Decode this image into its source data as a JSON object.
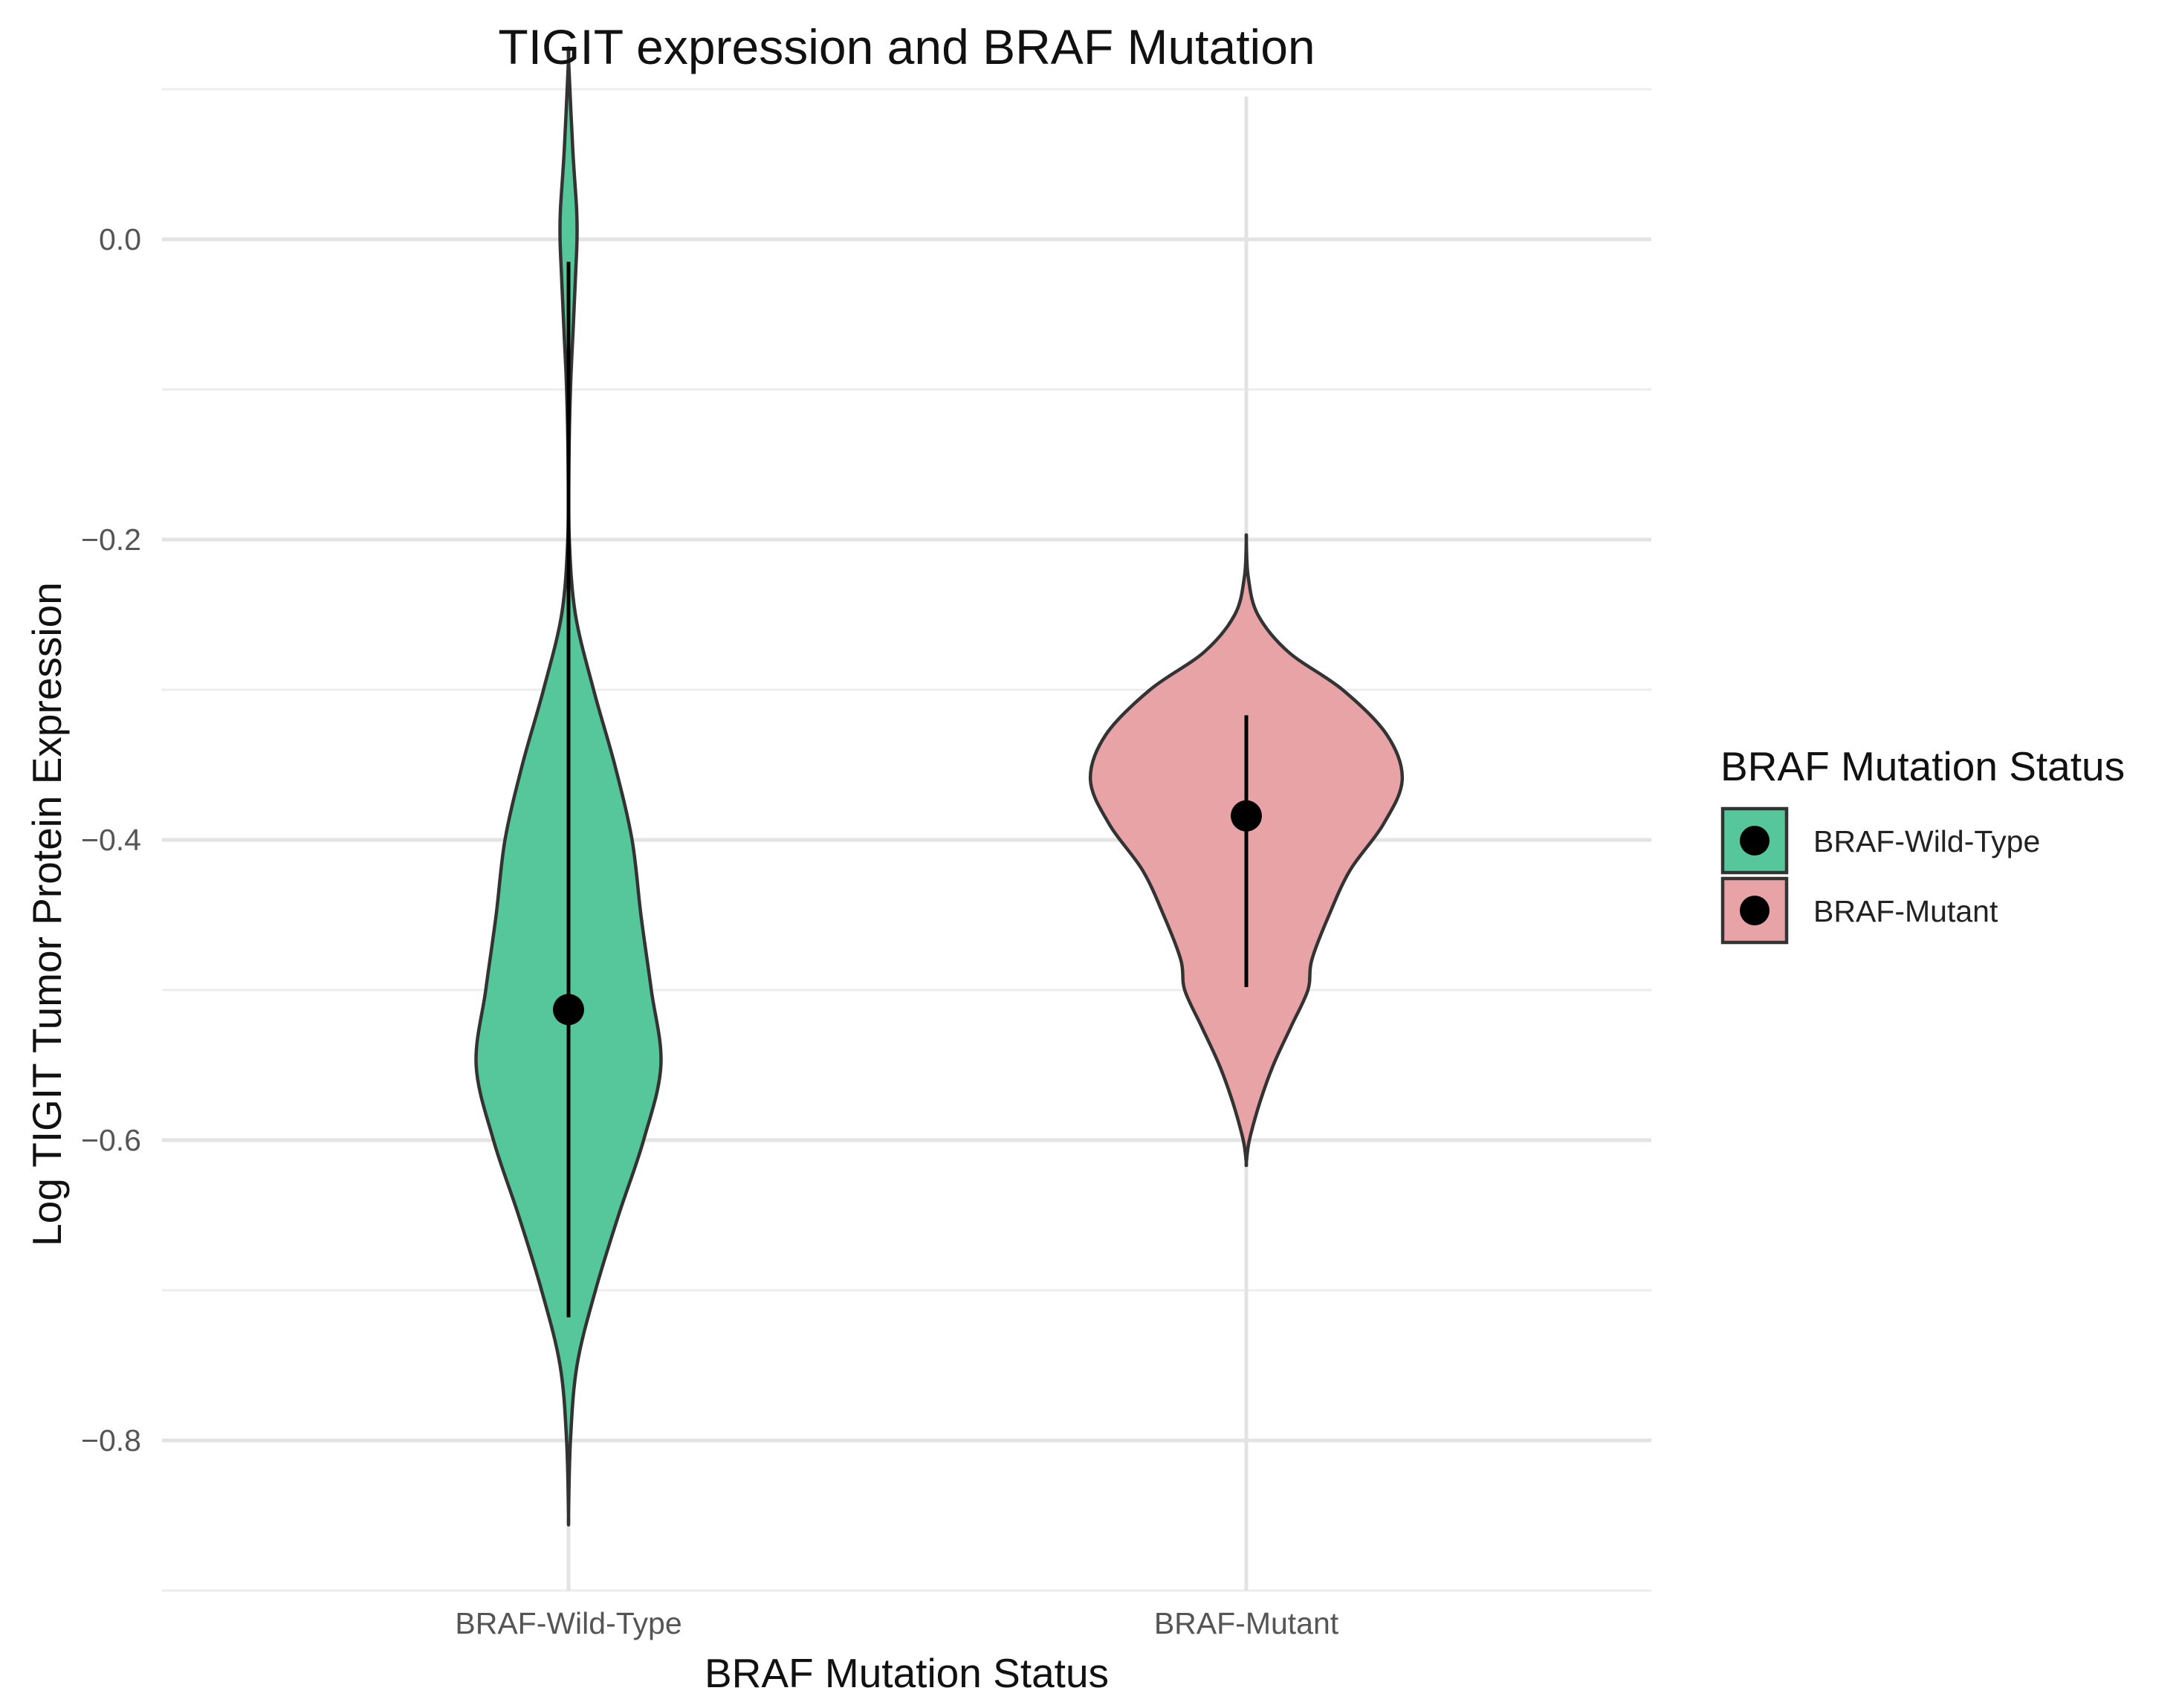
{
  "chart_data": {
    "type": "violin",
    "title": "TIGIT expression and BRAF Mutation",
    "xlabel": "BRAF Mutation Status",
    "ylabel": "Log TIGIT Tumor Protein Expression",
    "ylim": [
      -0.9,
      0.1
    ],
    "yticks": [
      0.0,
      -0.2,
      -0.4,
      -0.6,
      -0.8
    ],
    "ytick_labels": [
      "0.0",
      "−0.2",
      "−0.4",
      "−0.6",
      "−0.8"
    ],
    "categories": [
      "BRAF-Wild-Type",
      "BRAF-Mutant"
    ],
    "grid": true,
    "legend": {
      "title": "BRAF Mutation Status",
      "position": "right",
      "entries": [
        "BRAF-Wild-Type",
        "BRAF-Mutant"
      ]
    },
    "series": [
      {
        "name": "BRAF-Wild-Type",
        "color": "#56C69B",
        "summary": {
          "point": -0.513,
          "lower": -0.718,
          "upper": -0.015
        },
        "density": [
          [
            0.12,
            0.0
          ],
          [
            0.06,
            0.011
          ],
          [
            0.02,
            0.021
          ],
          [
            0.0,
            0.022
          ],
          [
            -0.02,
            0.019
          ],
          [
            -0.06,
            0.012
          ],
          [
            -0.1,
            0.005
          ],
          [
            -0.15,
            0.001
          ],
          [
            -0.2,
            0.002
          ],
          [
            -0.25,
            0.018
          ],
          [
            -0.3,
            0.065
          ],
          [
            -0.35,
            0.12
          ],
          [
            -0.4,
            0.165
          ],
          [
            -0.45,
            0.188
          ],
          [
            -0.5,
            0.215
          ],
          [
            -0.55,
            0.24
          ],
          [
            -0.6,
            0.195
          ],
          [
            -0.65,
            0.13
          ],
          [
            -0.7,
            0.07
          ],
          [
            -0.75,
            0.022
          ],
          [
            -0.8,
            0.005
          ],
          [
            -0.85,
            0.0
          ]
        ]
      },
      {
        "name": "BRAF-Mutant",
        "color": "#E8A3A6",
        "summary": {
          "point": -0.384,
          "lower": -0.498,
          "upper": -0.317
        },
        "density": [
          [
            -0.2,
            0.0
          ],
          [
            -0.225,
            0.005
          ],
          [
            -0.25,
            0.03
          ],
          [
            -0.275,
            0.11
          ],
          [
            -0.3,
            0.25
          ],
          [
            -0.33,
            0.365
          ],
          [
            -0.36,
            0.405
          ],
          [
            -0.39,
            0.355
          ],
          [
            -0.42,
            0.27
          ],
          [
            -0.45,
            0.215
          ],
          [
            -0.48,
            0.17
          ],
          [
            -0.5,
            0.16
          ],
          [
            -0.525,
            0.115
          ],
          [
            -0.55,
            0.07
          ],
          [
            -0.575,
            0.035
          ],
          [
            -0.6,
            0.008
          ],
          [
            -0.615,
            0.0
          ]
        ]
      }
    ]
  }
}
